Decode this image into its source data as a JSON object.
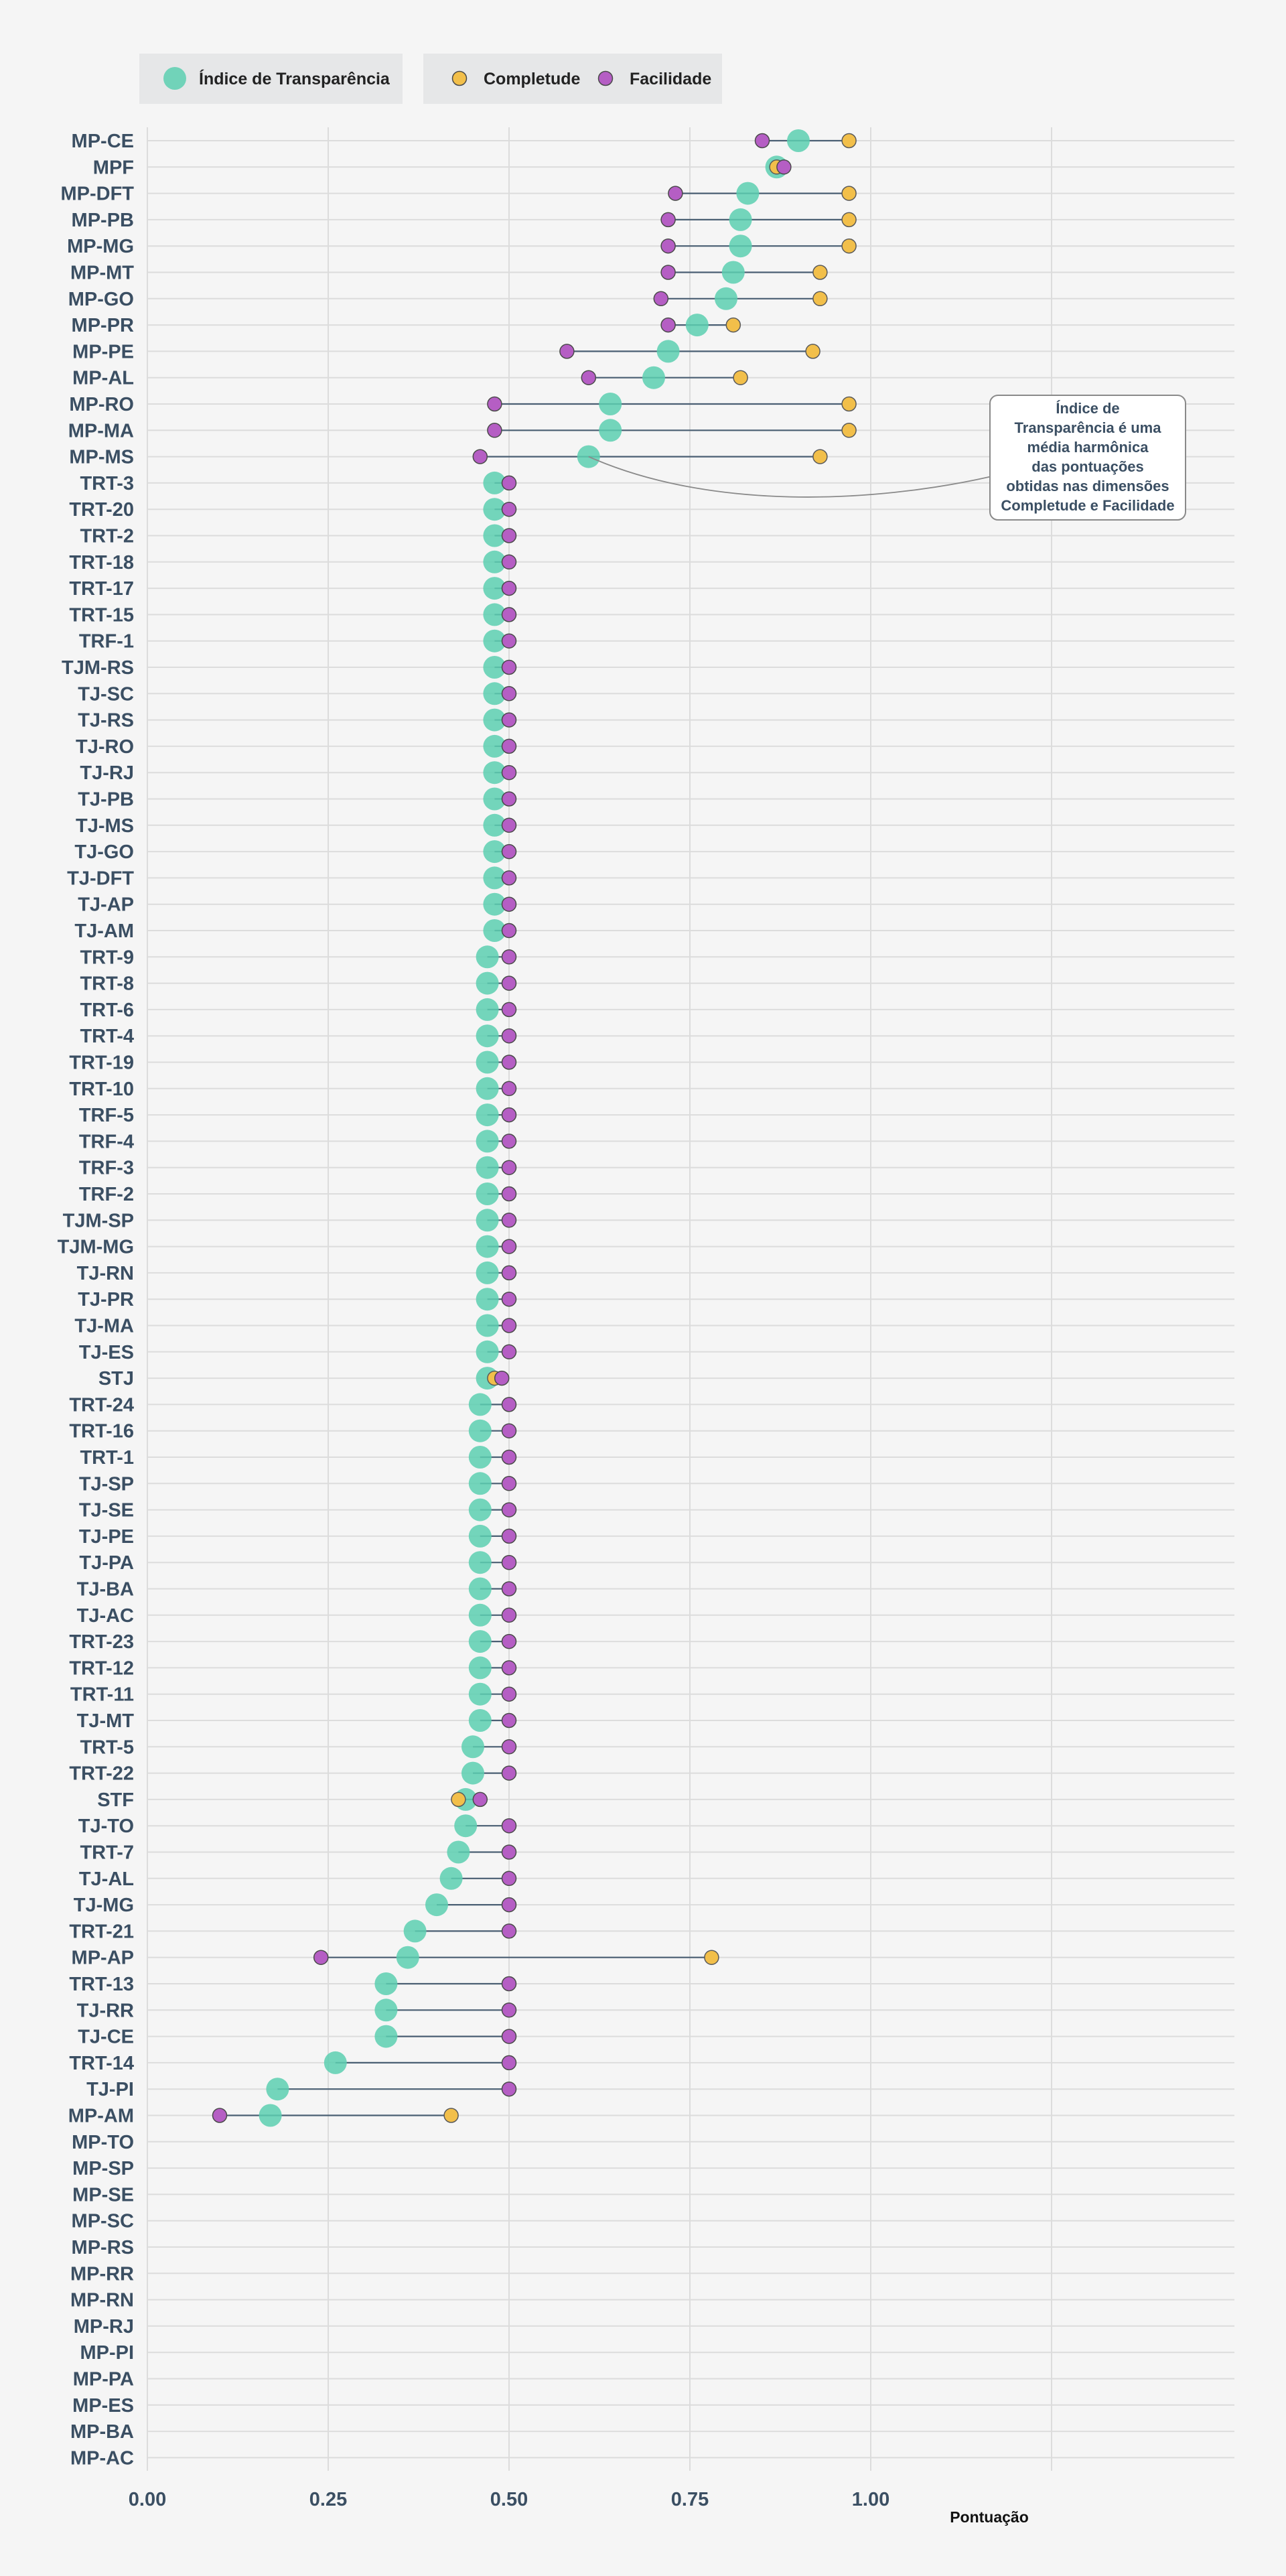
{
  "chart_data": {
    "type": "dumbbell",
    "xlabel": "Pontuação",
    "xlim": [
      0,
      1.5
    ],
    "xticks": [
      0,
      0.25,
      0.5,
      0.75,
      1.0
    ],
    "xtick_labels": [
      "0.00",
      "0.25",
      "0.50",
      "0.75",
      "1.00"
    ],
    "grid": true,
    "legend": {
      "placement": "top-left",
      "items": [
        {
          "key": "indice",
          "label": "Índice de Transparência",
          "color": "#5ccfb0"
        },
        {
          "key": "completude",
          "label": "Completude",
          "color": "#f2bf4a"
        },
        {
          "key": "facilidade",
          "label": "Facilidade",
          "color": "#b55ec4"
        }
      ]
    },
    "series_keys": [
      "indice",
      "completude",
      "facilidade"
    ],
    "annotation": {
      "lines": [
        "Índice de",
        "Transparência é uma",
        "média harmônica",
        "das pontuações",
        "obtidas nas dimensões",
        "Completude e Facilidade"
      ],
      "points_to": "MP-MS"
    },
    "rows": [
      {
        "label": "MP-CE",
        "indice": 0.9,
        "completude": 0.97,
        "facilidade": 0.85
      },
      {
        "label": "MPF",
        "indice": 0.87,
        "completude": 0.87,
        "facilidade": 0.88
      },
      {
        "label": "MP-DFT",
        "indice": 0.83,
        "completude": 0.97,
        "facilidade": 0.73
      },
      {
        "label": "MP-PB",
        "indice": 0.82,
        "completude": 0.97,
        "facilidade": 0.72
      },
      {
        "label": "MP-MG",
        "indice": 0.82,
        "completude": 0.97,
        "facilidade": 0.72
      },
      {
        "label": "MP-MT",
        "indice": 0.81,
        "completude": 0.93,
        "facilidade": 0.72
      },
      {
        "label": "MP-GO",
        "indice": 0.8,
        "completude": 0.93,
        "facilidade": 0.71
      },
      {
        "label": "MP-PR",
        "indice": 0.76,
        "completude": 0.81,
        "facilidade": 0.72
      },
      {
        "label": "MP-PE",
        "indice": 0.72,
        "completude": 0.92,
        "facilidade": 0.58
      },
      {
        "label": "MP-AL",
        "indice": 0.7,
        "completude": 0.82,
        "facilidade": 0.61
      },
      {
        "label": "MP-RO",
        "indice": 0.64,
        "completude": 0.97,
        "facilidade": 0.48
      },
      {
        "label": "MP-MA",
        "indice": 0.64,
        "completude": 0.97,
        "facilidade": 0.48
      },
      {
        "label": "MP-MS",
        "indice": 0.61,
        "completude": 0.93,
        "facilidade": 0.46
      },
      {
        "label": "TRT-3",
        "indice": 0.48,
        "completude": null,
        "facilidade": 0.5
      },
      {
        "label": "TRT-20",
        "indice": 0.48,
        "completude": null,
        "facilidade": 0.5
      },
      {
        "label": "TRT-2",
        "indice": 0.48,
        "completude": null,
        "facilidade": 0.5
      },
      {
        "label": "TRT-18",
        "indice": 0.48,
        "completude": null,
        "facilidade": 0.5
      },
      {
        "label": "TRT-17",
        "indice": 0.48,
        "completude": null,
        "facilidade": 0.5
      },
      {
        "label": "TRT-15",
        "indice": 0.48,
        "completude": null,
        "facilidade": 0.5
      },
      {
        "label": "TRF-1",
        "indice": 0.48,
        "completude": null,
        "facilidade": 0.5
      },
      {
        "label": "TJM-RS",
        "indice": 0.48,
        "completude": null,
        "facilidade": 0.5
      },
      {
        "label": "TJ-SC",
        "indice": 0.48,
        "completude": null,
        "facilidade": 0.5
      },
      {
        "label": "TJ-RS",
        "indice": 0.48,
        "completude": null,
        "facilidade": 0.5
      },
      {
        "label": "TJ-RO",
        "indice": 0.48,
        "completude": null,
        "facilidade": 0.5
      },
      {
        "label": "TJ-RJ",
        "indice": 0.48,
        "completude": null,
        "facilidade": 0.5
      },
      {
        "label": "TJ-PB",
        "indice": 0.48,
        "completude": null,
        "facilidade": 0.5
      },
      {
        "label": "TJ-MS",
        "indice": 0.48,
        "completude": null,
        "facilidade": 0.5
      },
      {
        "label": "TJ-GO",
        "indice": 0.48,
        "completude": null,
        "facilidade": 0.5
      },
      {
        "label": "TJ-DFT",
        "indice": 0.48,
        "completude": null,
        "facilidade": 0.5
      },
      {
        "label": "TJ-AP",
        "indice": 0.48,
        "completude": null,
        "facilidade": 0.5
      },
      {
        "label": "TJ-AM",
        "indice": 0.48,
        "completude": null,
        "facilidade": 0.5
      },
      {
        "label": "TRT-9",
        "indice": 0.47,
        "completude": null,
        "facilidade": 0.5
      },
      {
        "label": "TRT-8",
        "indice": 0.47,
        "completude": null,
        "facilidade": 0.5
      },
      {
        "label": "TRT-6",
        "indice": 0.47,
        "completude": null,
        "facilidade": 0.5
      },
      {
        "label": "TRT-4",
        "indice": 0.47,
        "completude": null,
        "facilidade": 0.5
      },
      {
        "label": "TRT-19",
        "indice": 0.47,
        "completude": null,
        "facilidade": 0.5
      },
      {
        "label": "TRT-10",
        "indice": 0.47,
        "completude": null,
        "facilidade": 0.5
      },
      {
        "label": "TRF-5",
        "indice": 0.47,
        "completude": null,
        "facilidade": 0.5
      },
      {
        "label": "TRF-4",
        "indice": 0.47,
        "completude": null,
        "facilidade": 0.5
      },
      {
        "label": "TRF-3",
        "indice": 0.47,
        "completude": null,
        "facilidade": 0.5
      },
      {
        "label": "TRF-2",
        "indice": 0.47,
        "completude": null,
        "facilidade": 0.5
      },
      {
        "label": "TJM-SP",
        "indice": 0.47,
        "completude": null,
        "facilidade": 0.5
      },
      {
        "label": "TJM-MG",
        "indice": 0.47,
        "completude": null,
        "facilidade": 0.5
      },
      {
        "label": "TJ-RN",
        "indice": 0.47,
        "completude": null,
        "facilidade": 0.5
      },
      {
        "label": "TJ-PR",
        "indice": 0.47,
        "completude": null,
        "facilidade": 0.5
      },
      {
        "label": "TJ-MA",
        "indice": 0.47,
        "completude": null,
        "facilidade": 0.5
      },
      {
        "label": "TJ-ES",
        "indice": 0.47,
        "completude": null,
        "facilidade": 0.5
      },
      {
        "label": "STJ",
        "indice": 0.47,
        "completude": 0.48,
        "facilidade": 0.49
      },
      {
        "label": "TRT-24",
        "indice": 0.46,
        "completude": null,
        "facilidade": 0.5
      },
      {
        "label": "TRT-16",
        "indice": 0.46,
        "completude": null,
        "facilidade": 0.5
      },
      {
        "label": "TRT-1",
        "indice": 0.46,
        "completude": null,
        "facilidade": 0.5
      },
      {
        "label": "TJ-SP",
        "indice": 0.46,
        "completude": null,
        "facilidade": 0.5
      },
      {
        "label": "TJ-SE",
        "indice": 0.46,
        "completude": null,
        "facilidade": 0.5
      },
      {
        "label": "TJ-PE",
        "indice": 0.46,
        "completude": null,
        "facilidade": 0.5
      },
      {
        "label": "TJ-PA",
        "indice": 0.46,
        "completude": null,
        "facilidade": 0.5
      },
      {
        "label": "TJ-BA",
        "indice": 0.46,
        "completude": null,
        "facilidade": 0.5
      },
      {
        "label": "TJ-AC",
        "indice": 0.46,
        "completude": null,
        "facilidade": 0.5
      },
      {
        "label": "TRT-23",
        "indice": 0.46,
        "completude": null,
        "facilidade": 0.5
      },
      {
        "label": "TRT-12",
        "indice": 0.46,
        "completude": null,
        "facilidade": 0.5
      },
      {
        "label": "TRT-11",
        "indice": 0.46,
        "completude": null,
        "facilidade": 0.5
      },
      {
        "label": "TJ-MT",
        "indice": 0.46,
        "completude": null,
        "facilidade": 0.5
      },
      {
        "label": "TRT-5",
        "indice": 0.45,
        "completude": null,
        "facilidade": 0.5
      },
      {
        "label": "TRT-22",
        "indice": 0.45,
        "completude": null,
        "facilidade": 0.5
      },
      {
        "label": "STF",
        "indice": 0.44,
        "completude": 0.43,
        "facilidade": 0.46
      },
      {
        "label": "TJ-TO",
        "indice": 0.44,
        "completude": null,
        "facilidade": 0.5
      },
      {
        "label": "TRT-7",
        "indice": 0.43,
        "completude": null,
        "facilidade": 0.5
      },
      {
        "label": "TJ-AL",
        "indice": 0.42,
        "completude": null,
        "facilidade": 0.5
      },
      {
        "label": "TJ-MG",
        "indice": 0.4,
        "completude": null,
        "facilidade": 0.5
      },
      {
        "label": "TRT-21",
        "indice": 0.37,
        "completude": null,
        "facilidade": 0.5
      },
      {
        "label": "MP-AP",
        "indice": 0.36,
        "completude": 0.78,
        "facilidade": 0.24
      },
      {
        "label": "TRT-13",
        "indice": 0.33,
        "completude": null,
        "facilidade": 0.5
      },
      {
        "label": "TJ-RR",
        "indice": 0.33,
        "completude": null,
        "facilidade": 0.5
      },
      {
        "label": "TJ-CE",
        "indice": 0.33,
        "completude": null,
        "facilidade": 0.5
      },
      {
        "label": "TRT-14",
        "indice": 0.26,
        "completude": null,
        "facilidade": 0.5
      },
      {
        "label": "TJ-PI",
        "indice": 0.18,
        "completude": null,
        "facilidade": 0.5
      },
      {
        "label": "MP-AM",
        "indice": 0.17,
        "completude": 0.42,
        "facilidade": 0.1
      },
      {
        "label": "MP-TO",
        "indice": null,
        "completude": null,
        "facilidade": null
      },
      {
        "label": "MP-SP",
        "indice": null,
        "completude": null,
        "facilidade": null
      },
      {
        "label": "MP-SE",
        "indice": null,
        "completude": null,
        "facilidade": null
      },
      {
        "label": "MP-SC",
        "indice": null,
        "completude": null,
        "facilidade": null
      },
      {
        "label": "MP-RS",
        "indice": null,
        "completude": null,
        "facilidade": null
      },
      {
        "label": "MP-RR",
        "indice": null,
        "completude": null,
        "facilidade": null
      },
      {
        "label": "MP-RN",
        "indice": null,
        "completude": null,
        "facilidade": null
      },
      {
        "label": "MP-RJ",
        "indice": null,
        "completude": null,
        "facilidade": null
      },
      {
        "label": "MP-PI",
        "indice": null,
        "completude": null,
        "facilidade": null
      },
      {
        "label": "MP-PA",
        "indice": null,
        "completude": null,
        "facilidade": null
      },
      {
        "label": "MP-ES",
        "indice": null,
        "completude": null,
        "facilidade": null
      },
      {
        "label": "MP-BA",
        "indice": null,
        "completude": null,
        "facilidade": null
      },
      {
        "label": "MP-AC",
        "indice": null,
        "completude": null,
        "facilidade": null
      }
    ]
  }
}
